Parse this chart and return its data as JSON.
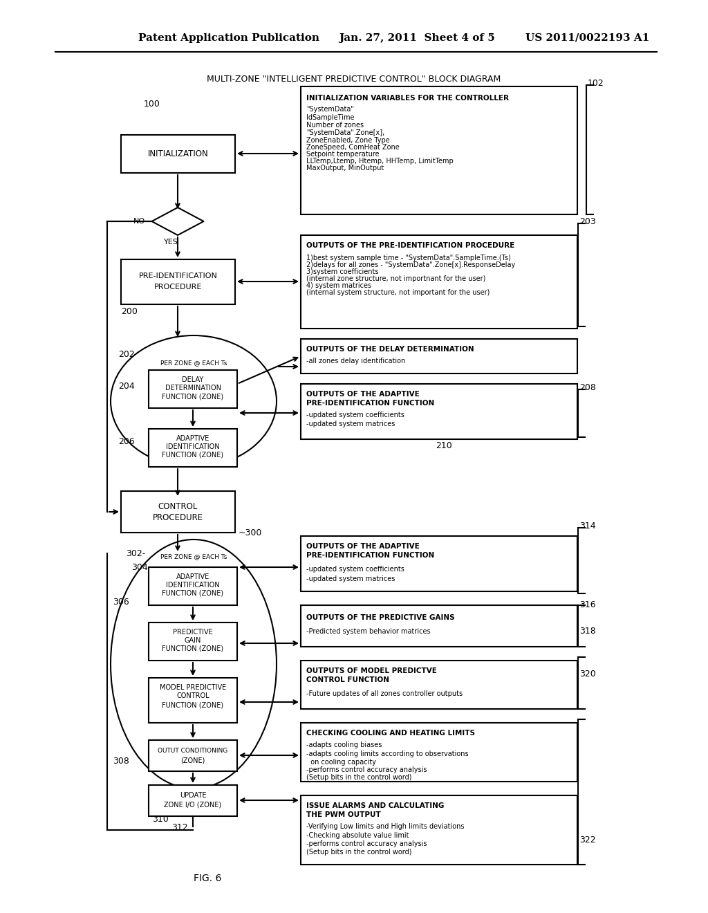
{
  "title_header": "Patent Application Publication",
  "title_date": "Jan. 27, 2011  Sheet 4 of 5",
  "title_patent": "US 2011/0022193 A1",
  "diagram_title": "MULTI-ZONE \"INTELLIGENT PREDICTIVE CONTROL\" BLOCK DIAGRAM",
  "fig_label": "FIG. 6",
  "bg_color": "#ffffff",
  "line_color": "#000000",
  "box_fill": "#ffffff"
}
